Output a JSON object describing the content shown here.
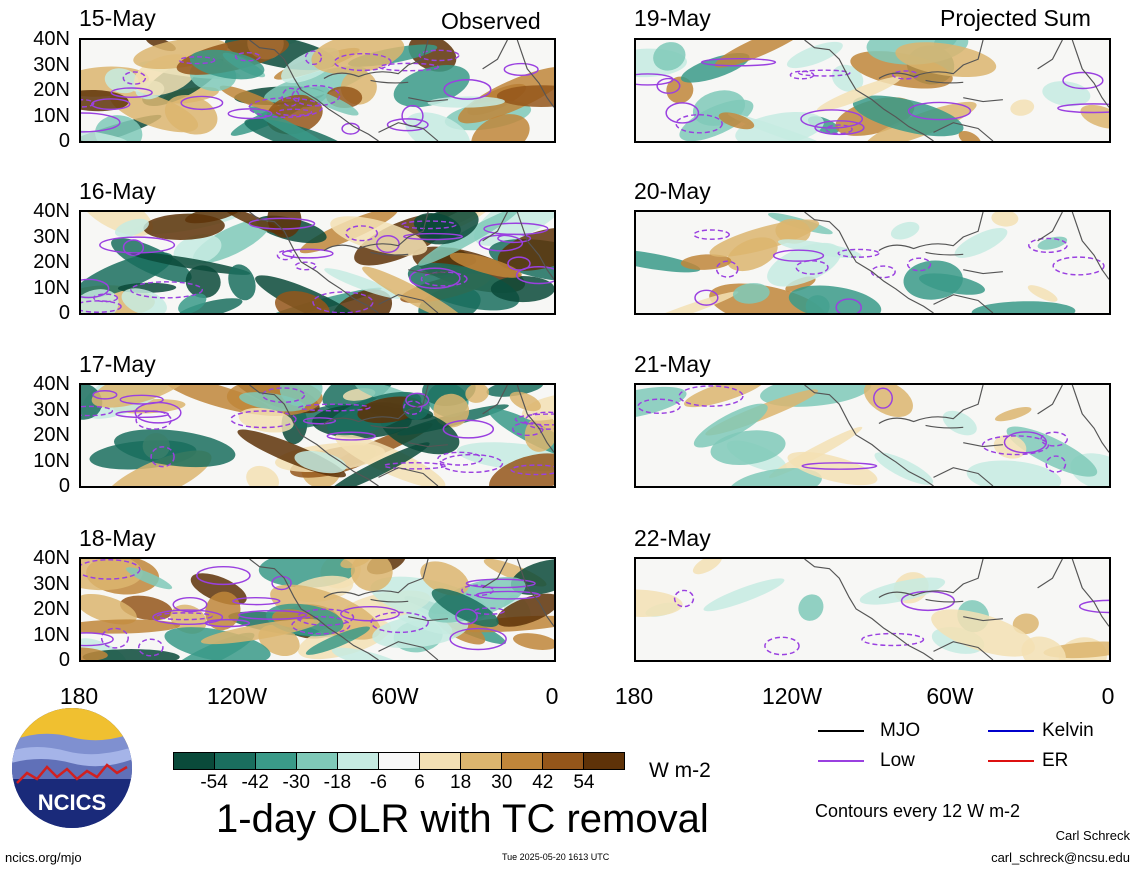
{
  "panels": {
    "observed_label": "Observed",
    "projected_label": "Projected Sum",
    "left_dates": [
      "15-May",
      "16-May",
      "17-May",
      "18-May"
    ],
    "right_dates": [
      "19-May",
      "20-May",
      "21-May",
      "22-May"
    ],
    "y_ticks": [
      "40N",
      "30N",
      "20N",
      "10N",
      "0"
    ],
    "x_ticks": [
      "180",
      "120W",
      "60W",
      "0"
    ]
  },
  "colorbar": {
    "labels": [
      "-54",
      "-42",
      "-30",
      "-18",
      "-6",
      "6",
      "18",
      "30",
      "42",
      "54"
    ],
    "colors": [
      "#0a4a3a",
      "#1a6e5e",
      "#3a9a88",
      "#7fc9b8",
      "#c6ebe2",
      "#f7f7f7",
      "#f3e0b4",
      "#dcb56e",
      "#c0863a",
      "#94561a",
      "#5e3208"
    ],
    "unit": "W m-2"
  },
  "legend": {
    "items": [
      {
        "name": "MJO",
        "color": "#000000"
      },
      {
        "name": "Kelvin",
        "color": "#0000cc"
      },
      {
        "name": "Low",
        "color": "#9a40e0"
      },
      {
        "name": "ER",
        "color": "#dd1010"
      }
    ],
    "contour_note": "Contours every 12 W m-2"
  },
  "title": "1-day OLR with TC removal",
  "logo_text": "NCICS",
  "footer": {
    "website": "ncics.org/mjo",
    "timestamp": "Tue 2025-05-20 1613 UTC",
    "author": "Carl Schreck",
    "email": "carl_schreck@ncsu.edu"
  }
}
